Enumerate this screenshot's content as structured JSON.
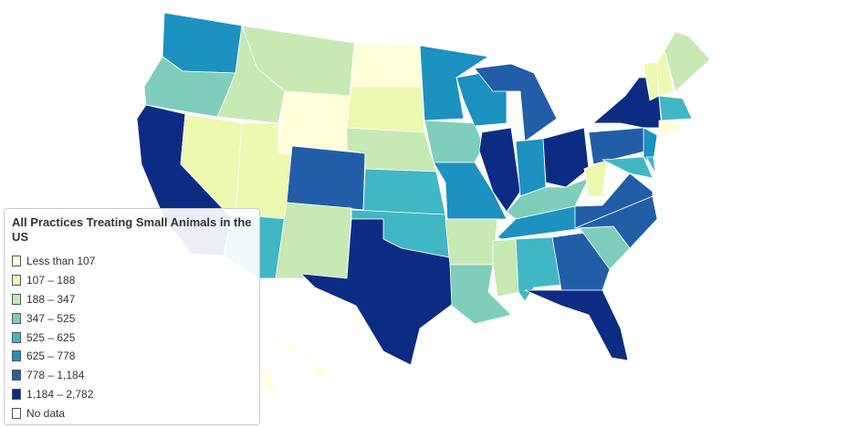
{
  "legend": {
    "title": "All Practices Treating Small Animals in the US",
    "items": [
      {
        "label": "Less than 107",
        "color": "#ffffd9"
      },
      {
        "label": "107 – 188",
        "color": "#edf8b1"
      },
      {
        "label": "188 – 347",
        "color": "#c7e9b4"
      },
      {
        "label": "347 – 525",
        "color": "#7fcdbb"
      },
      {
        "label": "525 – 625",
        "color": "#41b6c4"
      },
      {
        "label": "625 – 778",
        "color": "#1d91c0"
      },
      {
        "label": "778 – 1,184",
        "color": "#225ea8"
      },
      {
        "label": "1,184 – 2,782",
        "color": "#0c2c84"
      },
      {
        "label": "No data",
        "color": "#ffffff"
      }
    ]
  }
}
